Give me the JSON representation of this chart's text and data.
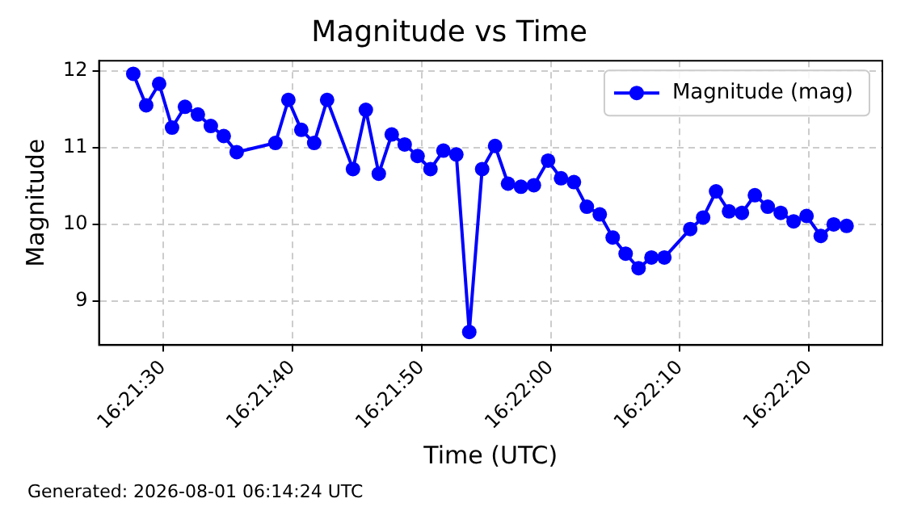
{
  "chart_data": {
    "type": "line",
    "title": "Magnitude vs Time",
    "xlabel": "Time (UTC)",
    "ylabel": "Magnitude",
    "annotations": [
      "Generated: 2026-08-01 06:14:24 UTC"
    ],
    "x": [
      16.357694,
      16.357972,
      16.35825,
      16.358528,
      16.358806,
      16.359083,
      16.359361,
      16.359639,
      16.359917,
      16.36075,
      16.361028,
      16.361306,
      16.361583,
      16.361861,
      16.362417,
      16.362694,
      16.362972,
      16.36325,
      16.363528,
      16.363806,
      16.364083,
      16.364361,
      16.364639,
      16.364917,
      16.365194,
      16.365472,
      16.36575,
      16.366028,
      16.366306,
      16.366611,
      16.366889,
      16.367167,
      16.367444,
      16.367722,
      16.368,
      16.368278,
      16.368556,
      16.368833,
      16.369111,
      16.369667,
      16.369944,
      16.370222,
      16.3705,
      16.370778,
      16.371056,
      16.371333,
      16.371611,
      16.371889,
      16.372167,
      16.372472,
      16.37275,
      16.373028
    ],
    "series": [
      {
        "name": "Magnitude (mag)",
        "color": "#0000ff",
        "values": [
          11.96,
          11.55,
          11.83,
          11.26,
          11.53,
          11.43,
          11.28,
          11.15,
          10.94,
          11.06,
          11.62,
          11.23,
          11.06,
          11.62,
          10.72,
          11.49,
          10.66,
          11.17,
          11.04,
          10.89,
          10.72,
          10.96,
          10.91,
          8.6,
          10.72,
          11.02,
          10.53,
          10.49,
          10.51,
          10.83,
          10.6,
          10.55,
          10.23,
          10.13,
          9.83,
          9.62,
          9.43,
          9.57,
          9.57,
          9.94,
          10.09,
          10.43,
          10.17,
          10.15,
          10.38,
          10.23,
          10.15,
          10.04,
          10.11,
          9.85,
          10.0,
          9.98
        ]
      }
    ],
    "xlim": [
      16.356958,
      16.373797
    ],
    "xticks": [
      {
        "value": 16.358333,
        "label": "16:21:30"
      },
      {
        "value": 16.361111,
        "label": "16:21:40"
      },
      {
        "value": 16.363889,
        "label": "16:21:50"
      },
      {
        "value": 16.366667,
        "label": "16:22:00"
      },
      {
        "value": 16.369444,
        "label": "16:22:10"
      },
      {
        "value": 16.372222,
        "label": "16:22:20"
      }
    ],
    "ylim": [
      8.43,
      12.13
    ],
    "yticks": [
      9,
      10,
      11,
      12
    ],
    "grid": true,
    "legend": "top right",
    "marker": "circle",
    "line_style": "solid"
  }
}
